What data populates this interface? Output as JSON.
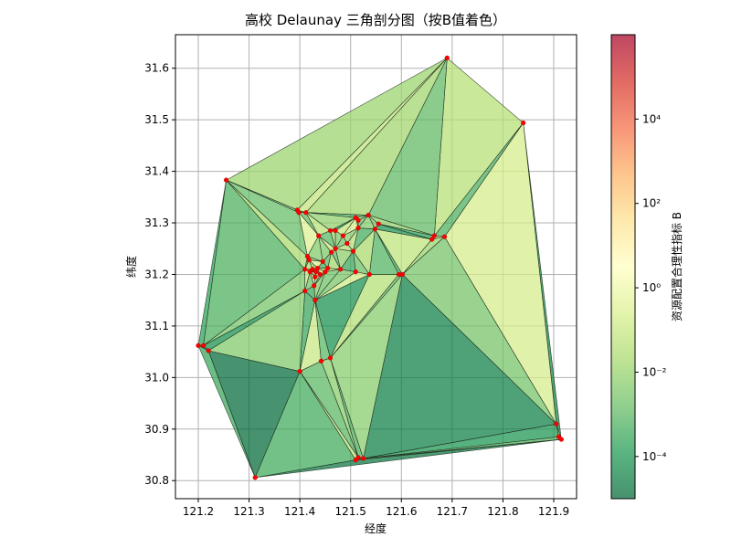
{
  "chart_data": {
    "type": "delaunay-triangulation",
    "title": "高校 Delaunay 三角剖分图（按B值着色）",
    "xlabel": "经度",
    "ylabel": "纬度",
    "xlim": [
      121.155,
      121.945
    ],
    "ylim": [
      30.765,
      31.665
    ],
    "xticks": [
      121.2,
      121.3,
      121.4,
      121.5,
      121.6,
      121.7,
      121.8,
      121.9
    ],
    "yticks": [
      30.8,
      30.9,
      31.0,
      31.1,
      31.2,
      31.3,
      31.4,
      31.5,
      31.6
    ],
    "grid": true,
    "points": [
      [
        121.69,
        31.62
      ],
      [
        121.84,
        31.494
      ],
      [
        121.255,
        31.383
      ],
      [
        121.2,
        31.062
      ],
      [
        121.21,
        31.062
      ],
      [
        121.22,
        31.052
      ],
      [
        121.312,
        30.806
      ],
      [
        121.51,
        30.84
      ],
      [
        121.515,
        30.845
      ],
      [
        121.525,
        30.843
      ],
      [
        121.905,
        30.91
      ],
      [
        121.91,
        30.885
      ],
      [
        121.915,
        30.88
      ],
      [
        121.4,
        31.012
      ],
      [
        121.442,
        31.032
      ],
      [
        121.46,
        31.038
      ],
      [
        121.43,
        31.15
      ],
      [
        121.41,
        31.168
      ],
      [
        121.395,
        31.325
      ],
      [
        121.398,
        31.32
      ],
      [
        121.412,
        31.32
      ],
      [
        121.51,
        31.31
      ],
      [
        121.515,
        31.305
      ],
      [
        121.535,
        31.315
      ],
      [
        121.555,
        31.298
      ],
      [
        121.548,
        31.288
      ],
      [
        121.66,
        31.268
      ],
      [
        121.665,
        31.275
      ],
      [
        121.685,
        31.273
      ],
      [
        121.595,
        31.2
      ],
      [
        121.602,
        31.2
      ],
      [
        121.537,
        31.2
      ],
      [
        121.48,
        31.21
      ],
      [
        121.51,
        31.205
      ],
      [
        121.505,
        31.245
      ],
      [
        121.493,
        31.26
      ],
      [
        121.485,
        31.275
      ],
      [
        121.47,
        31.285
      ],
      [
        121.437,
        31.275
      ],
      [
        121.46,
        31.285
      ],
      [
        121.462,
        31.243
      ],
      [
        121.445,
        31.225
      ],
      [
        121.435,
        31.212
      ],
      [
        121.432,
        31.205
      ],
      [
        121.44,
        31.2
      ],
      [
        121.45,
        31.205
      ],
      [
        121.455,
        31.212
      ],
      [
        121.415,
        31.235
      ],
      [
        121.41,
        31.21
      ],
      [
        121.42,
        31.205
      ],
      [
        121.425,
        31.21
      ],
      [
        121.43,
        31.195
      ],
      [
        121.418,
        31.228
      ],
      [
        121.428,
        31.178
      ],
      [
        121.47,
        31.25
      ],
      [
        121.515,
        31.29
      ]
    ],
    "b_color_scale": {
      "scale": "log",
      "min": 1e-05,
      "max": 1000000,
      "colormap": "RdYlGn_r",
      "label": "资源配置合理性指标 B",
      "ticks": [
        "10⁴",
        "10²",
        "10⁰",
        "10⁻²",
        "10⁻⁴"
      ]
    },
    "b_values": [
      0.0002,
      5e-05,
      0.0003,
      0.02,
      0.0001,
      2e-05,
      0.008,
      0.0008,
      4e-05,
      0.03,
      1e-05,
      0.0004,
      0.05,
      0.001,
      0.0006,
      0.006,
      0.1,
      0.0009,
      7e-05,
      0.004,
      0.0003,
      0.012,
      0.002,
      0.07,
      0.00015,
      0.015,
      0.0005,
      0.025,
      0.003,
      9e-05,
      0.04,
      0.0012,
      0.009,
      0.0002,
      0.2,
      0.0006,
      0.018,
      3e-05,
      0.005,
      0.0015,
      0.06,
      0.0004,
      0.011,
      0.0025,
      8e-05,
      0.035,
      0.0007,
      0.15,
      0.003,
      0.0003,
      0.022,
      0.0018,
      0.08,
      0.0011,
      0.007,
      0.00012,
      0.045,
      0.0035,
      0.0005,
      0.12,
      0.0022,
      0.016,
      0.0009,
      0.05,
      0.0004,
      0.028,
      0.0014,
      0.3,
      0.0045,
      0.0006,
      0.019,
      0.0028,
      0.065,
      0.0008,
      0.0055,
      0.00025,
      0.038,
      0.0017,
      0.25,
      0.0031,
      0.009,
      0.0007,
      0.024,
      0.0013,
      0.0042,
      0.00035,
      0.055,
      0.002,
      0.17,
      0.0065,
      0.0011,
      0.033,
      0.0024,
      0.0009,
      0.075,
      0.0038,
      0.013,
      0.0016,
      0.0048,
      0.00045,
      0.042,
      0.0027,
      0.19,
      0.0058,
      0.0012,
      0.029,
      0.0034,
      0.0008,
      0.085,
      0.0044,
      0.014,
      0.0019,
      0.0062,
      0.0005
    ]
  }
}
